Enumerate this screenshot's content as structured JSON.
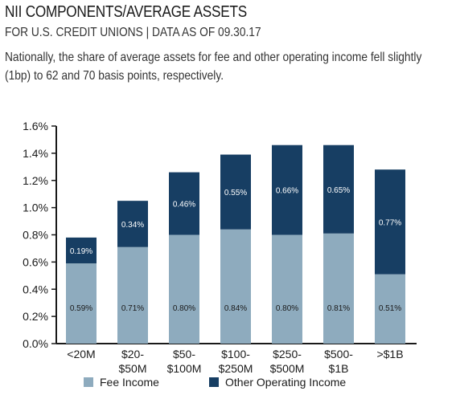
{
  "header": {
    "title": "NII COMPONENTS/AVERAGE ASSETS",
    "subtitle": "FOR U.S. CREDIT UNIONS | DATA AS OF 09.30.17",
    "description": "Nationally, the share of average assets for fee and other operating income fell slightly (1bp) to 62 and 70 basis points, respectively."
  },
  "colors": {
    "fee": "#8eabbe",
    "other": "#173e63",
    "axis": "#1a1a1a"
  },
  "chart_data": {
    "type": "bar",
    "stacked": true,
    "categories": [
      [
        "<20M"
      ],
      [
        "$20-",
        "$50M"
      ],
      [
        "$50-",
        "$100M"
      ],
      [
        "$100-",
        "$250M"
      ],
      [
        "$250-",
        "$500M"
      ],
      [
        "$500-",
        "$1B"
      ],
      [
        ">$1B"
      ]
    ],
    "series": [
      {
        "name": "Fee Income",
        "values": [
          0.59,
          0.71,
          0.8,
          0.84,
          0.8,
          0.81,
          0.51
        ],
        "labels": [
          "0.59%",
          "0.71%",
          "0.80%",
          "0.84%",
          "0.80%",
          "0.81%",
          "0.51%"
        ]
      },
      {
        "name": "Other Operating Income",
        "values": [
          0.19,
          0.34,
          0.46,
          0.55,
          0.66,
          0.65,
          0.77
        ],
        "labels": [
          "0.19%",
          "0.34%",
          "0.46%",
          "0.55%",
          "0.66%",
          "0.65%",
          "0.77%"
        ]
      }
    ],
    "ylim": [
      0,
      1.6
    ],
    "yticks": [
      "0.0%",
      "0.2%",
      "0.4%",
      "0.6%",
      "0.8%",
      "1.0%",
      "1.2%",
      "1.4%",
      "1.6%"
    ],
    "grid": false,
    "legend": "bottom"
  }
}
